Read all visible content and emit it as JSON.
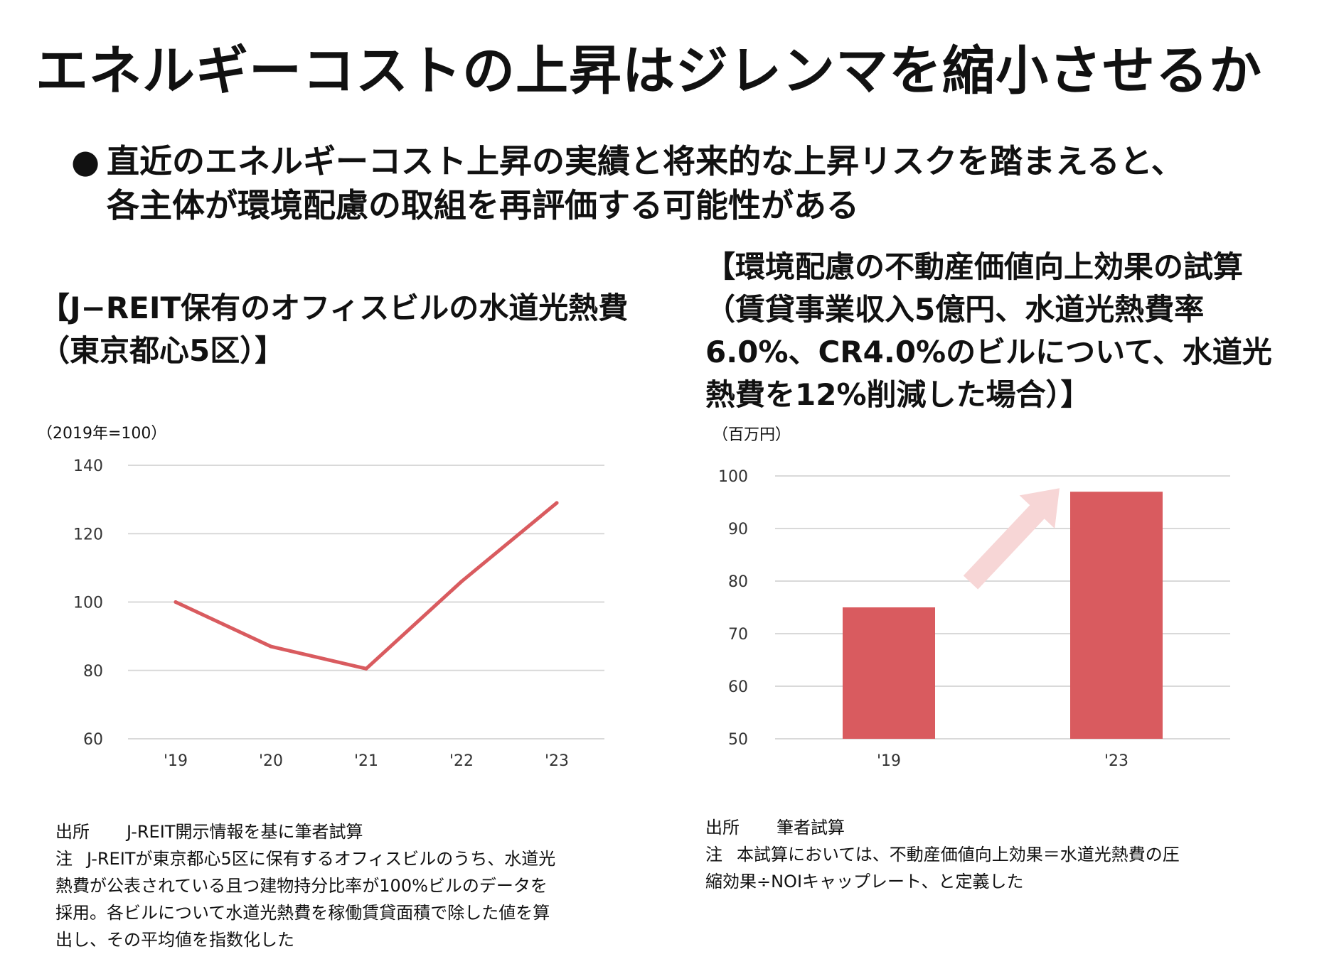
{
  "title": "エネルギーコストの上昇はジレンマを縮小させるか",
  "bullet": {
    "symbol": "●",
    "lines": [
      "直近のエネルギーコスト上昇の実績と将来的な上昇リスクを踏まえると、",
      "各主体が環境配慮の取組を再評価する可能性がある"
    ]
  },
  "left_panel": {
    "heading_lines": [
      "【J−REIT保有のオフィスビルの水道光熱費",
      "（東京都心5区）】"
    ],
    "unit": "（2019年=100）",
    "source_label": "出所",
    "source_text": "J-REIT開示情報を基に筆者試算",
    "note_label": "注",
    "note_lines": [
      "J-REITが東京都心5区に保有するオフィスビルのうち、水道光",
      "熱費が公表されている且つ建物持分比率が100%ビルのデータを",
      "採用。各ビルについて水道光熱費を稼働賃貸面積で除した値を算",
      "出し、その平均値を指数化した"
    ]
  },
  "right_panel": {
    "heading_lines": [
      "【環境配慮の不動産価値向上効果の試算",
      "（賃貸事業収入5億円、水道光熱費率",
      "6.0%、CR4.0%のビルについて、水道光",
      "熱費を12%削減した場合）】"
    ],
    "unit": "（百万円）",
    "source_label": "出所",
    "source_text": "筆者試算",
    "note_label": "注",
    "note_lines": [
      "本試算においては、不動産価値向上効果＝水道光熱費の圧",
      "縮効果÷NOIキャップレート、と定義した"
    ]
  },
  "colors": {
    "series": "#d95b5f",
    "arrow": "#f7d6d6",
    "grid": "#d9d9d9",
    "text": "#111111",
    "axis": "#333333"
  },
  "chart_data": [
    {
      "type": "line",
      "title": "J−REIT保有のオフィスビルの水道光熱費（東京都心5区）",
      "categories": [
        "'19",
        "'20",
        "'21",
        "'22",
        "'23"
      ],
      "values": [
        100,
        87,
        80.5,
        106,
        129
      ],
      "yticks": [
        60,
        80,
        100,
        120,
        140
      ],
      "ylim": [
        60,
        140
      ],
      "ylabel": "（2019年=100）",
      "grid": true
    },
    {
      "type": "bar",
      "title": "環境配慮の不動産価値向上効果の試算",
      "categories": [
        "'19",
        "'23"
      ],
      "values": [
        75,
        97
      ],
      "yticks": [
        50,
        60,
        70,
        80,
        90,
        100
      ],
      "ylim": [
        50,
        100
      ],
      "ylabel": "（百万円）",
      "grid": true,
      "annotation": "increase-arrow"
    }
  ]
}
